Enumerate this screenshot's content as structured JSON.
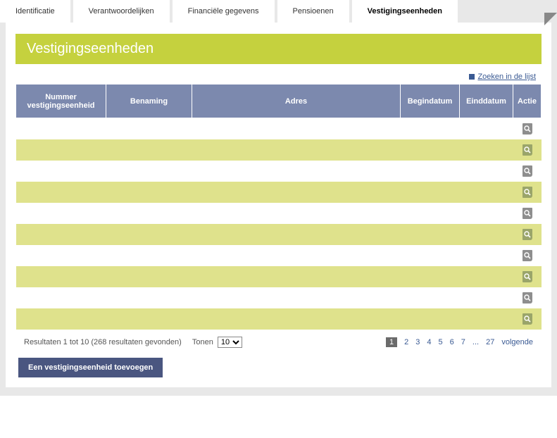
{
  "tabs": [
    {
      "label": "Identificatie",
      "active": false
    },
    {
      "label": "Verantwoordelijken",
      "active": false
    },
    {
      "label": "Financiële gegevens",
      "active": false
    },
    {
      "label": "Pensioenen",
      "active": false
    },
    {
      "label": "Vestigingseenheden",
      "active": true
    }
  ],
  "title": "Vestigingseenheden",
  "search_link": "Zoeken in de lijst",
  "columns": {
    "nummer": "Nummer vestigingseenheid",
    "benaming": "Benaming",
    "adres": "Adres",
    "begindatum": "Begindatum",
    "einddatum": "Einddatum",
    "actie": "Actie"
  },
  "rows": [
    {
      "nummer": "",
      "benaming": "",
      "adres": "",
      "begindatum": "",
      "einddatum": ""
    },
    {
      "nummer": "",
      "benaming": "",
      "adres": "",
      "begindatum": "",
      "einddatum": ""
    },
    {
      "nummer": "",
      "benaming": "",
      "adres": "",
      "begindatum": "",
      "einddatum": ""
    },
    {
      "nummer": "",
      "benaming": "",
      "adres": "",
      "begindatum": "",
      "einddatum": ""
    },
    {
      "nummer": "",
      "benaming": "",
      "adres": "",
      "begindatum": "",
      "einddatum": ""
    },
    {
      "nummer": "",
      "benaming": "",
      "adres": "",
      "begindatum": "",
      "einddatum": ""
    },
    {
      "nummer": "",
      "benaming": "",
      "adres": "",
      "begindatum": "",
      "einddatum": ""
    },
    {
      "nummer": "",
      "benaming": "",
      "adres": "",
      "begindatum": "",
      "einddatum": ""
    },
    {
      "nummer": "",
      "benaming": "",
      "adres": "",
      "begindatum": "",
      "einddatum": ""
    },
    {
      "nummer": "",
      "benaming": "",
      "adres": "",
      "begindatum": "",
      "einddatum": ""
    }
  ],
  "footer": {
    "results_text": "Resultaten 1 tot 10 (268 resultaten gevonden)",
    "show_label": "Tonen",
    "page_size_options": [
      "10"
    ],
    "page_size_selected": "10",
    "pages": [
      "1",
      "2",
      "3",
      "4",
      "5",
      "6",
      "7"
    ],
    "dots": "...",
    "last_page": "27",
    "next_label": "volgende",
    "current_page": "1"
  },
  "add_button": "Een vestigingseenheid toevoegen",
  "colors": {
    "title_bg": "#c5d13e",
    "header_bg": "#7c89ae",
    "row_even_bg": "#dfe28c",
    "link": "#3a5a93",
    "button_bg": "#4a5680"
  }
}
